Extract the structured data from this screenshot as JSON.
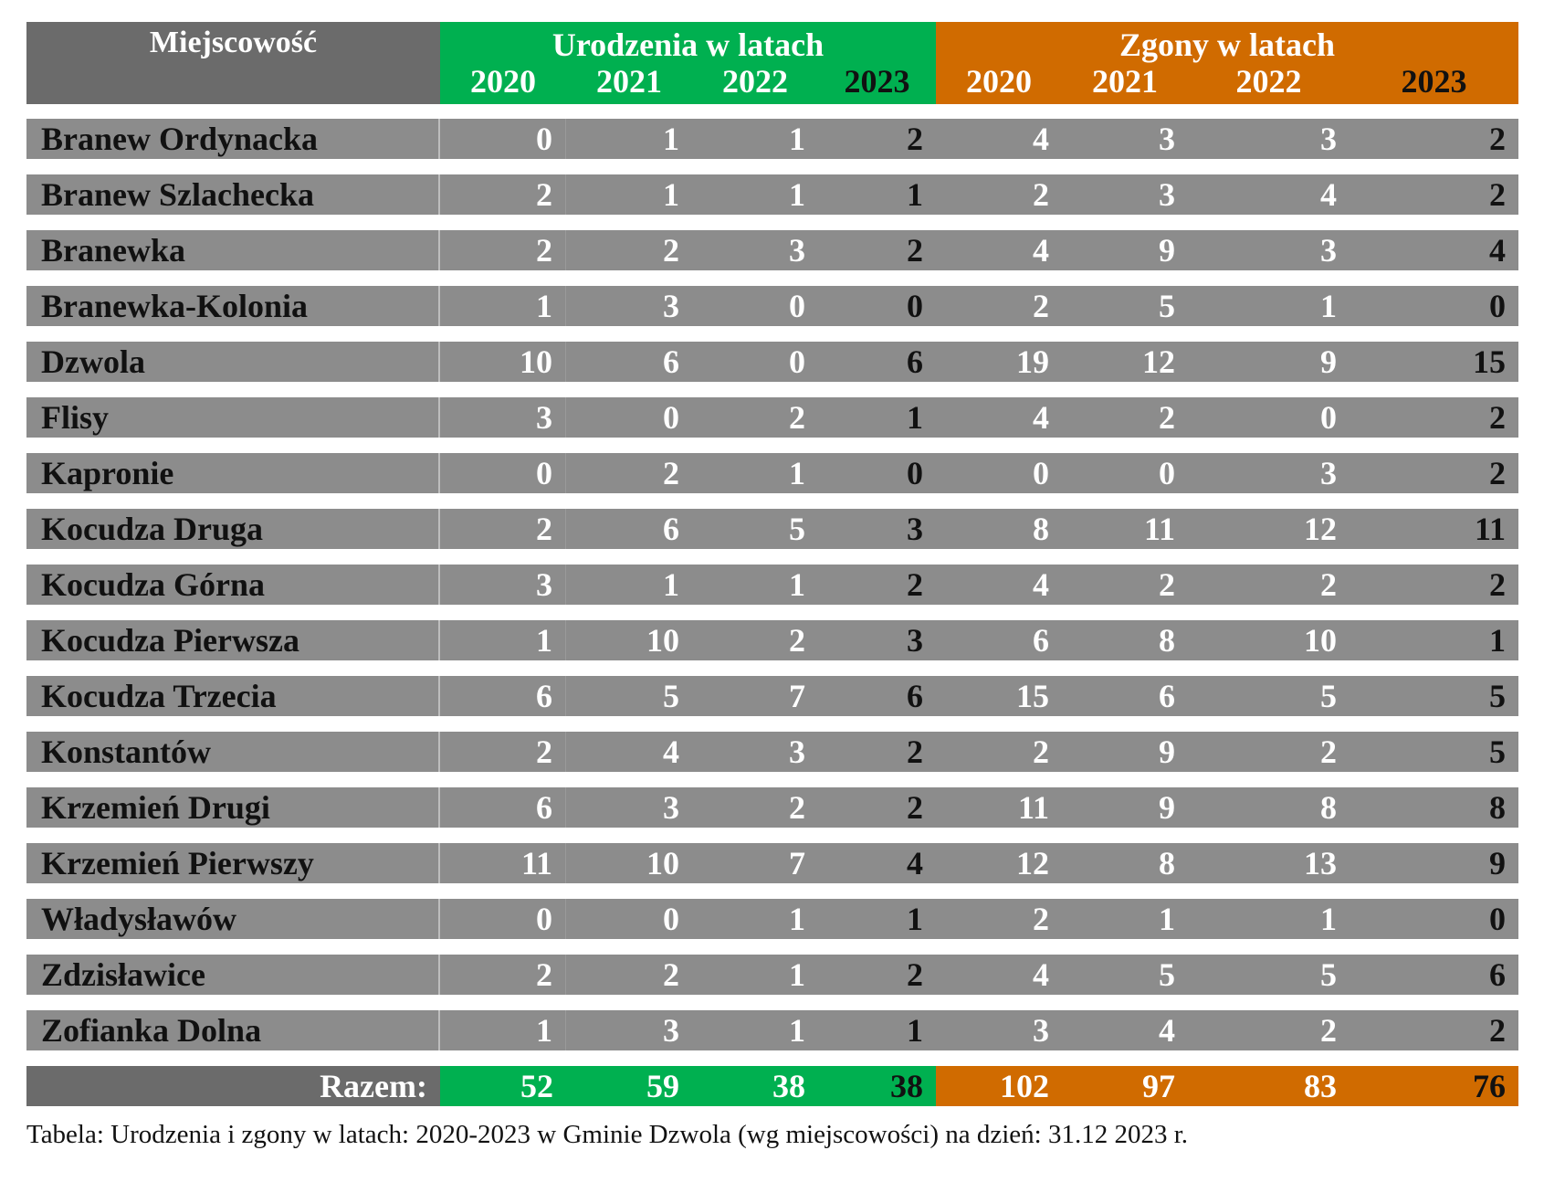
{
  "header": {
    "place_label": "Miejscowość",
    "births_label": "Urodzenia w latach",
    "deaths_label": "Zgony w latach",
    "years": [
      "2020",
      "2021",
      "2022",
      "2023"
    ]
  },
  "rows": [
    {
      "name": "Branew Ordynacka",
      "births": [
        "0",
        "1",
        "1",
        "2"
      ],
      "deaths": [
        "4",
        "3",
        "3",
        "2"
      ]
    },
    {
      "name": "Branew Szlachecka",
      "births": [
        "2",
        "1",
        "1",
        "1"
      ],
      "deaths": [
        "2",
        "3",
        "4",
        "2"
      ]
    },
    {
      "name": "Branewka",
      "births": [
        "2",
        "2",
        "3",
        "2"
      ],
      "deaths": [
        "4",
        "9",
        "3",
        "4"
      ]
    },
    {
      "name": "Branewka-Kolonia",
      "births": [
        "1",
        "3",
        "0",
        "0"
      ],
      "deaths": [
        "2",
        "5",
        "1",
        "0"
      ]
    },
    {
      "name": "Dzwola",
      "births": [
        "10",
        "6",
        "0",
        "6"
      ],
      "deaths": [
        "19",
        "12",
        "9",
        "15"
      ]
    },
    {
      "name": "Flisy",
      "births": [
        "3",
        "0",
        "2",
        "1"
      ],
      "deaths": [
        "4",
        "2",
        "0",
        "2"
      ]
    },
    {
      "name": "Kapronie",
      "births": [
        "0",
        "2",
        "1",
        "0"
      ],
      "deaths": [
        "0",
        "0",
        "3",
        "2"
      ]
    },
    {
      "name": "Kocudza Druga",
      "births": [
        "2",
        "6",
        "5",
        "3"
      ],
      "deaths": [
        "8",
        "11",
        "12",
        "11"
      ]
    },
    {
      "name": "Kocudza Górna",
      "births": [
        "3",
        "1",
        "1",
        "2"
      ],
      "deaths": [
        "4",
        "2",
        "2",
        "2"
      ]
    },
    {
      "name": "Kocudza Pierwsza",
      "births": [
        "1",
        "10",
        "2",
        "3"
      ],
      "deaths": [
        "6",
        "8",
        "10",
        "1"
      ]
    },
    {
      "name": "Kocudza Trzecia",
      "births": [
        "6",
        "5",
        "7",
        "6"
      ],
      "deaths": [
        "15",
        "6",
        "5",
        "5"
      ]
    },
    {
      "name": "Konstantów",
      "births": [
        "2",
        "4",
        "3",
        "2"
      ],
      "deaths": [
        "2",
        "9",
        "2",
        "5"
      ]
    },
    {
      "name": "Krzemień Drugi",
      "births": [
        "6",
        "3",
        "2",
        "2"
      ],
      "deaths": [
        "11",
        "9",
        "8",
        "8"
      ]
    },
    {
      "name": "Krzemień Pierwszy",
      "births": [
        "11",
        "10",
        "7",
        "4"
      ],
      "deaths": [
        "12",
        "8",
        "13",
        "9"
      ]
    },
    {
      "name": "Władysławów",
      "births": [
        "0",
        "0",
        "1",
        "1"
      ],
      "deaths": [
        "2",
        "1",
        "1",
        "0"
      ]
    },
    {
      "name": "Zdzisławice",
      "births": [
        "2",
        "2",
        "1",
        "2"
      ],
      "deaths": [
        "4",
        "5",
        "5",
        "6"
      ]
    },
    {
      "name": "Zofianka Dolna",
      "births": [
        "1",
        "3",
        "1",
        "1"
      ],
      "deaths": [
        "3",
        "4",
        "2",
        "2"
      ]
    }
  ],
  "total": {
    "label": "Razem:",
    "births": [
      "52",
      "59",
      "38",
      "38"
    ],
    "deaths": [
      "102",
      "97",
      "83",
      "76"
    ]
  },
  "caption": "Tabela: Urodzenia i zgony w latach: 2020-2023 w Gminie Dzwola (wg miejscowości) na dzień: 31.12 2023 r.",
  "colors": {
    "births_accent": "#00b050",
    "deaths_accent": "#d06b00",
    "row_bg": "#8c8c8c",
    "header_bg": "#6b6b6b"
  }
}
